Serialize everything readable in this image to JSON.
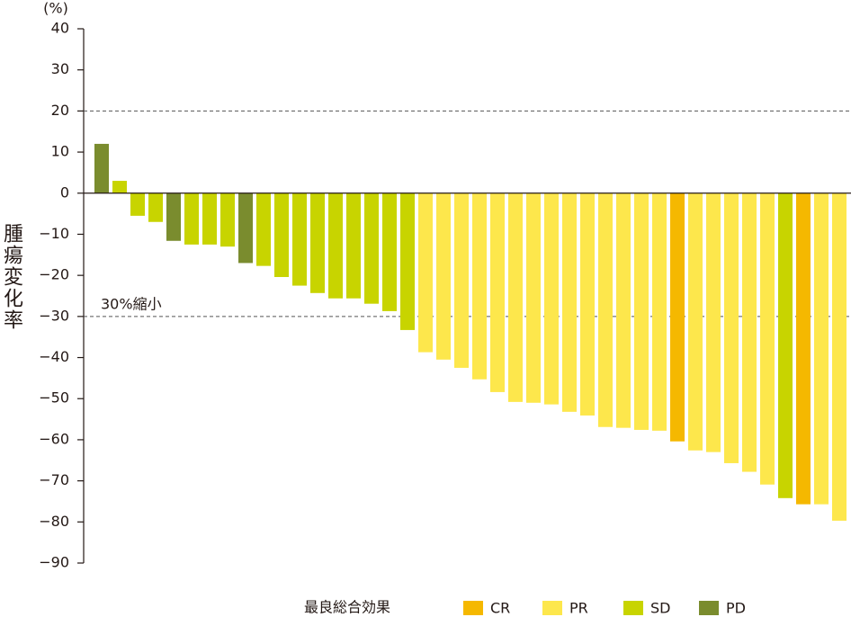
{
  "chart_data": {
    "type": "bar",
    "y_label": "腫瘍変化率",
    "y_unit": "(%)",
    "values": [
      12,
      3,
      -5.5,
      -7,
      -11.6,
      -12.5,
      -12.5,
      -13,
      -17,
      -17.7,
      -20.4,
      -22.5,
      -24.3,
      -25.6,
      -25.6,
      -26.9,
      -28.7,
      -33.3,
      -38.7,
      -40.5,
      -42.5,
      -45.3,
      -48.4,
      -50.8,
      -51,
      -51.4,
      -53.2,
      -54.1,
      -56.9,
      -57.1,
      -57.6,
      -57.8,
      -60.4,
      -62.6,
      -63,
      -65.7,
      -67.8,
      -70.9,
      -74.2,
      -75.7,
      -75.7,
      -79.7
    ],
    "response": [
      "PD",
      "SD",
      "SD",
      "SD",
      "PD",
      "SD",
      "SD",
      "SD",
      "PD",
      "SD",
      "SD",
      "SD",
      "SD",
      "SD",
      "SD",
      "SD",
      "SD",
      "SD",
      "PR",
      "PR",
      "PR",
      "PR",
      "PR",
      "PR",
      "PR",
      "PR",
      "PR",
      "PR",
      "PR",
      "PR",
      "PR",
      "PR",
      "CR",
      "PR",
      "PR",
      "PR",
      "PR",
      "PR",
      "SD",
      "CR",
      "PR",
      "PR"
    ],
    "legend_title": "最良総合効果",
    "legend": [
      {
        "name": "CR",
        "color": "#f5b800"
      },
      {
        "name": "PR",
        "color": "#fde74c"
      },
      {
        "name": "SD",
        "color": "#c8d400"
      },
      {
        "name": "PD",
        "color": "#7a8c2e"
      }
    ],
    "ylim": [
      -90,
      40
    ],
    "yticks": [
      40,
      30,
      20,
      10,
      0,
      {
        "value": -10,
        "label": "−10"
      },
      {
        "value": -20,
        "label": "−20"
      },
      {
        "value": -30,
        "label": "−30"
      },
      {
        "value": -40,
        "label": "−40"
      },
      {
        "value": -50,
        "label": "−50"
      },
      {
        "value": -60,
        "label": "−60"
      },
      {
        "value": -70,
        "label": "−70"
      },
      {
        "value": -80,
        "label": "−80"
      },
      {
        "value": -90,
        "label": "−90"
      }
    ],
    "reference_lines": [
      20,
      -30
    ],
    "annotation": {
      "text": "30%縮小",
      "y": -30
    }
  }
}
